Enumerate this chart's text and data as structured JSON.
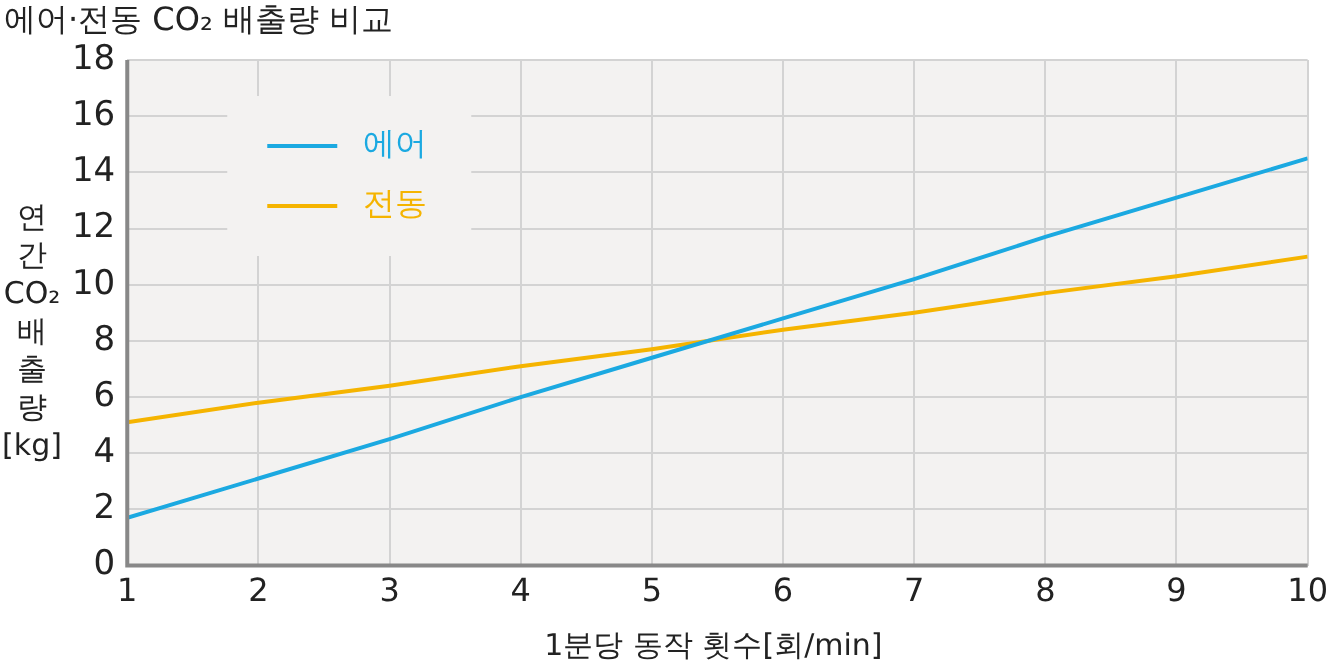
{
  "chart_data": {
    "type": "line",
    "title": "에어·전동 CO₂ 배출량 비교",
    "xlabel": "1분당 동작 횟수[회/min]",
    "ylabel": "연간 CO₂ 배출량 [kg]",
    "xlim": [
      1,
      10
    ],
    "xticks": [
      1,
      2,
      3,
      4,
      5,
      6,
      7,
      8,
      9,
      10
    ],
    "ylim": [
      0,
      18
    ],
    "yticks": [
      0,
      2,
      4,
      6,
      8,
      10,
      12,
      14,
      16,
      18
    ],
    "grid": true,
    "legend": "top left",
    "marker": "none",
    "line_style": "solid",
    "series": [
      {
        "name": "에어",
        "color": "#1ba9e1",
        "x": [
          1,
          2,
          3,
          4,
          5,
          6,
          7,
          8,
          9,
          10
        ],
        "values": [
          1.7,
          3.1,
          4.5,
          6.0,
          7.4,
          8.8,
          10.2,
          11.7,
          13.1,
          14.5
        ]
      },
      {
        "name": "전동",
        "color": "#f5b400",
        "x": [
          1,
          2,
          3,
          4,
          5,
          6,
          7,
          8,
          9,
          10
        ],
        "values": [
          5.1,
          5.8,
          6.4,
          7.1,
          7.7,
          8.4,
          9.0,
          9.7,
          10.3,
          11.0
        ]
      }
    ]
  }
}
